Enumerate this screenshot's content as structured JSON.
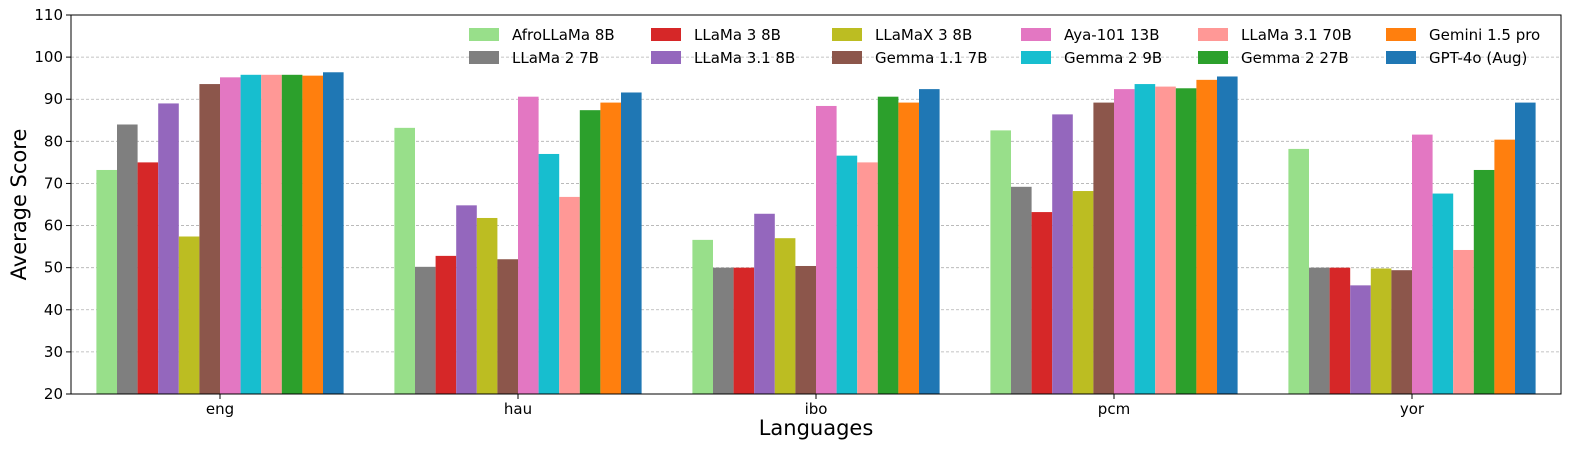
{
  "chart_data": {
    "type": "bar",
    "title": "",
    "xlabel": "Languages",
    "ylabel": "Average Score",
    "ylim": [
      20,
      110
    ],
    "yticks": [
      20,
      30,
      40,
      50,
      60,
      70,
      80,
      90,
      100,
      110
    ],
    "grid": "y-dashed",
    "legend_position": "top-right",
    "legend_columns": 6,
    "categories": [
      "eng",
      "hau",
      "ibo",
      "pcm",
      "yor"
    ],
    "series": [
      {
        "name": "AfroLLaMa 8B",
        "color": "#98df8a",
        "values": [
          73.2,
          83.2,
          56.6,
          82.6,
          78.2
        ]
      },
      {
        "name": "LLaMa 2 7B",
        "color": "#7f7f7f",
        "values": [
          84.0,
          50.2,
          50.0,
          69.2,
          50.0
        ]
      },
      {
        "name": "LLaMa 3 8B",
        "color": "#d62728",
        "values": [
          75.0,
          52.8,
          50.0,
          63.2,
          50.0
        ]
      },
      {
        "name": "LLaMa 3.1 8B",
        "color": "#9467bd",
        "values": [
          89.0,
          64.8,
          62.8,
          86.4,
          45.8
        ]
      },
      {
        "name": "LLaMaX 3 8B",
        "color": "#bcbd22",
        "values": [
          57.4,
          61.8,
          57.0,
          68.2,
          49.8
        ]
      },
      {
        "name": "Gemma 1.1 7B",
        "color": "#8c564b",
        "values": [
          93.6,
          52.0,
          50.4,
          89.2,
          49.4
        ]
      },
      {
        "name": "Aya-101 13B",
        "color": "#e377c2",
        "values": [
          95.2,
          90.6,
          88.4,
          92.4,
          81.6
        ]
      },
      {
        "name": "Gemma 2 9B",
        "color": "#17becf",
        "values": [
          95.8,
          77.0,
          76.6,
          93.6,
          67.6
        ]
      },
      {
        "name": "LLaMa 3.1 70B",
        "color": "#ff9896",
        "values": [
          95.8,
          66.8,
          75.0,
          93.0,
          54.2
        ]
      },
      {
        "name": "Gemma 2 27B",
        "color": "#2ca02c",
        "values": [
          95.8,
          87.4,
          90.6,
          92.6,
          73.2
        ]
      },
      {
        "name": "Gemini 1.5 pro",
        "color": "#ff7f0e",
        "values": [
          95.6,
          89.2,
          89.2,
          94.6,
          80.4
        ]
      },
      {
        "name": "GPT-4o (Aug)",
        "color": "#1f77b4",
        "values": [
          96.4,
          91.6,
          92.4,
          95.4,
          89.2
        ]
      }
    ]
  }
}
